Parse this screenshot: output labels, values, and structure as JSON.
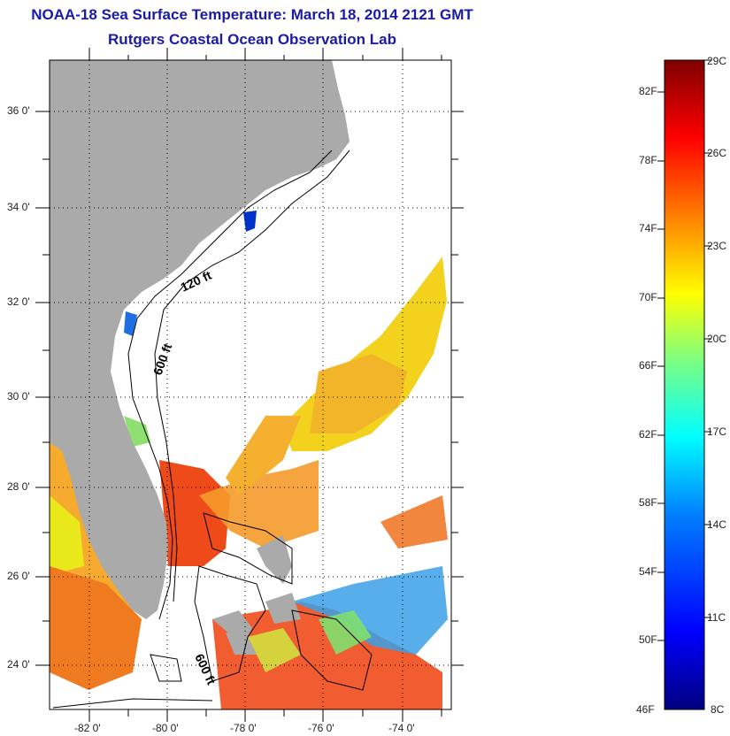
{
  "title": {
    "line1": "NOAA-18 Sea Surface Temperature:  March 18, 2014 2121 GMT",
    "line2": "Rutgers Coastal Ocean Observation Lab"
  },
  "map": {
    "lat_labels": [
      "36 0'",
      "34 0'",
      "32 0'",
      "30 0'",
      "28 0'",
      "26 0'",
      "24 0'"
    ],
    "lon_labels": [
      "-82 0'",
      "-80 0'",
      "-78 0'",
      "-76 0'",
      "-74 0'"
    ],
    "contour_labels": [
      "120 ft",
      "600 ft",
      "600 ft"
    ],
    "colors": {
      "land": "#aaaaaa",
      "ocean_nodata": "#ffffff",
      "grid": "#000000"
    }
  },
  "colorbar": {
    "fahrenheit_labels": [
      "82F",
      "78F",
      "74F",
      "70F",
      "66F",
      "62F",
      "58F",
      "54F",
      "50F",
      "46F"
    ],
    "celsius_labels": [
      "29C",
      "26C",
      "23C",
      "20C",
      "17C",
      "14C",
      "11C",
      "8C"
    ],
    "range_c": [
      8,
      29
    ],
    "palette": [
      "#00007f",
      "#0000ff",
      "#007fff",
      "#00ffff",
      "#7fff7f",
      "#ffff00",
      "#ff7f00",
      "#ff0000",
      "#7f0000"
    ]
  }
}
